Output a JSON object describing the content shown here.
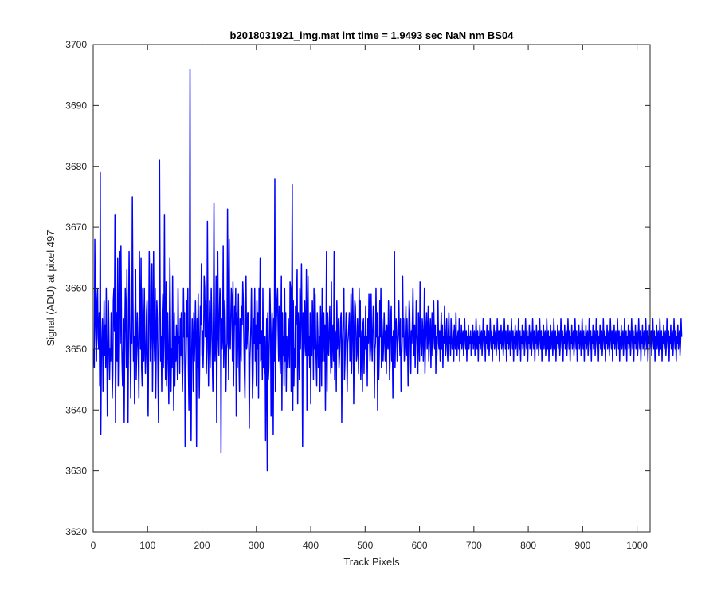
{
  "chart_data": {
    "type": "line",
    "title": "b2018031921_img.mat int time = 1.9493 sec  NaN nm BS04",
    "xlabel": "Track Pixels",
    "ylabel": "Signal (ADU) at pixel 497",
    "xlim": [
      0,
      1024
    ],
    "ylim": [
      3620,
      3700
    ],
    "x_ticks": [
      0,
      100,
      200,
      300,
      400,
      500,
      600,
      700,
      800,
      900,
      1000
    ],
    "y_ticks": [
      3620,
      3630,
      3640,
      3650,
      3660,
      3670,
      3680,
      3690,
      3700
    ],
    "grid": false,
    "legend": "none",
    "series": [
      {
        "color": "#0000ff",
        "x_start": 1,
        "x_step": 1,
        "count": 1024,
        "values": [
          3650,
          3647,
          3668,
          3656,
          3652,
          3648,
          3658,
          3660,
          3652,
          3650,
          3656,
          3644,
          3679,
          3636,
          3648,
          3652,
          3655,
          3643,
          3650,
          3658,
          3649,
          3654,
          3647,
          3660,
          3652,
          3639,
          3648,
          3658,
          3651,
          3645,
          3650,
          3648,
          3656,
          3652,
          3642,
          3646,
          3658,
          3660,
          3653,
          3672,
          3638,
          3650,
          3656,
          3648,
          3665,
          3644,
          3652,
          3666,
          3658,
          3651,
          3667,
          3655,
          3648,
          3644,
          3649,
          3655,
          3638,
          3652,
          3660,
          3656,
          3647,
          3663,
          3645,
          3638,
          3653,
          3666,
          3656,
          3649,
          3642,
          3655,
          3651,
          3675,
          3659,
          3648,
          3652,
          3641,
          3656,
          3663,
          3645,
          3650,
          3656,
          3652,
          3648,
          3642,
          3666,
          3655,
          3650,
          3665,
          3647,
          3644,
          3660,
          3652,
          3648,
          3660,
          3651,
          3646,
          3649,
          3656,
          3658,
          3644,
          3639,
          3652,
          3666,
          3660,
          3648,
          3650,
          3655,
          3664,
          3643,
          3652,
          3666,
          3652,
          3648,
          3660,
          3642,
          3651,
          3658,
          3655,
          3646,
          3638,
          3652,
          3681,
          3660,
          3648,
          3652,
          3643,
          3656,
          3659,
          3647,
          3654,
          3672,
          3651,
          3645,
          3661,
          3644,
          3650,
          3656,
          3648,
          3641,
          3652,
          3665,
          3655,
          3643,
          3650,
          3647,
          3662,
          3651,
          3640,
          3656,
          3644,
          3652,
          3648,
          3654,
          3650,
          3645,
          3660,
          3651,
          3652,
          3646,
          3655,
          3649,
          3656,
          3650,
          3643,
          3648,
          3660,
          3652,
          3656,
          3634,
          3645,
          3650,
          3658,
          3652,
          3660,
          3647,
          3640,
          3655,
          3696,
          3646,
          3635,
          3649,
          3655,
          3651,
          3643,
          3656,
          3648,
          3652,
          3658,
          3650,
          3634,
          3655,
          3647,
          3659,
          3652,
          3642,
          3650,
          3657,
          3654,
          3664,
          3649,
          3653,
          3647,
          3651,
          3662,
          3660,
          3652,
          3658,
          3646,
          3650,
          3671,
          3655,
          3644,
          3653,
          3658,
          3647,
          3652,
          3660,
          3655,
          3648,
          3643,
          3656,
          3674,
          3653,
          3648,
          3652,
          3662,
          3638,
          3653,
          3666,
          3652,
          3649,
          3656,
          3660,
          3657,
          3633,
          3655,
          3650,
          3652,
          3667,
          3647,
          3651,
          3658,
          3653,
          3643,
          3650,
          3651,
          3673,
          3654,
          3645,
          3668,
          3652,
          3650,
          3655,
          3660,
          3658,
          3648,
          3661,
          3644,
          3651,
          3657,
          3654,
          3660,
          3639,
          3656,
          3647,
          3653,
          3659,
          3648,
          3643,
          3655,
          3652,
          3648,
          3657,
          3654,
          3661,
          3658,
          3652,
          3646,
          3642,
          3655,
          3662,
          3650,
          3651,
          3656,
          3656,
          3652,
          3637,
          3648,
          3651,
          3654,
          3660,
          3650,
          3642,
          3646,
          3655,
          3651,
          3660,
          3648,
          3654,
          3644,
          3658,
          3650,
          3656,
          3642,
          3660,
          3651,
          3665,
          3648,
          3649,
          3653,
          3645,
          3660,
          3647,
          3651,
          3646,
          3652,
          3635,
          3648,
          3655,
          3630,
          3656,
          3645,
          3647,
          3652,
          3660,
          3655,
          3639,
          3650,
          3656,
          3651,
          3636,
          3655,
          3648,
          3678,
          3643,
          3650,
          3655,
          3658,
          3660,
          3653,
          3648,
          3657,
          3650,
          3646,
          3652,
          3662,
          3640,
          3656,
          3649,
          3652,
          3644,
          3660,
          3648,
          3656,
          3643,
          3652,
          3647,
          3650,
          3655,
          3649,
          3647,
          3661,
          3660,
          3643,
          3655,
          3677,
          3640,
          3658,
          3644,
          3650,
          3647,
          3657,
          3654,
          3658,
          3663,
          3641,
          3656,
          3652,
          3645,
          3660,
          3650,
          3656,
          3664,
          3652,
          3634,
          3656,
          3648,
          3650,
          3658,
          3652,
          3649,
          3663,
          3640,
          3654,
          3662,
          3649,
          3652,
          3647,
          3656,
          3641,
          3653,
          3649,
          3658,
          3654,
          3645,
          3660,
          3650,
          3659,
          3652,
          3648,
          3644,
          3656,
          3653,
          3647,
          3649,
          3652,
          3643,
          3657,
          3653,
          3644,
          3660,
          3648,
          3652,
          3656,
          3648,
          3654,
          3640,
          3652,
          3666,
          3643,
          3656,
          3650,
          3649,
          3654,
          3657,
          3650,
          3646,
          3661,
          3647,
          3652,
          3654,
          3648,
          3666,
          3645,
          3653,
          3652,
          3643,
          3658,
          3650,
          3652,
          3655,
          3647,
          3649,
          3652,
          3655,
          3656,
          3638,
          3650,
          3653,
          3657,
          3660,
          3645,
          3648,
          3652,
          3656,
          3655,
          3643,
          3651,
          3652,
          3654,
          3656,
          3648,
          3650,
          3659,
          3646,
          3651,
          3660,
          3655,
          3641,
          3652,
          3658,
          3657,
          3653,
          3648,
          3649,
          3655,
          3651,
          3646,
          3660,
          3652,
          3658,
          3645,
          3650,
          3653,
          3643,
          3654,
          3655,
          3646,
          3652,
          3650,
          3657,
          3649,
          3652,
          3644,
          3655,
          3651,
          3659,
          3653,
          3648,
          3650,
          3659,
          3652,
          3648,
          3653,
          3657,
          3655,
          3642,
          3650,
          3651,
          3660,
          3652,
          3656,
          3640,
          3652,
          3645,
          3649,
          3658,
          3652,
          3660,
          3647,
          3655,
          3652,
          3648,
          3651,
          3656,
          3652,
          3648,
          3653,
          3646,
          3654,
          3652,
          3650,
          3658,
          3653,
          3645,
          3649,
          3655,
          3657,
          3648,
          3652,
          3642,
          3653,
          3650,
          3666,
          3647,
          3652,
          3655,
          3653,
          3648,
          3651,
          3653,
          3658,
          3652,
          3649,
          3655,
          3643,
          3648,
          3651,
          3662,
          3652,
          3655,
          3648,
          3650,
          3653,
          3657,
          3649,
          3655,
          3651,
          3644,
          3652,
          3658,
          3656,
          3650,
          3646,
          3653,
          3651,
          3655,
          3660,
          3652,
          3649,
          3654,
          3647,
          3651,
          3658,
          3653,
          3650,
          3646,
          3656,
          3652,
          3648,
          3661,
          3652,
          3650,
          3649,
          3655,
          3653,
          3648,
          3652,
          3660,
          3646,
          3651,
          3654,
          3656,
          3650,
          3652,
          3657,
          3648,
          3651,
          3653,
          3655,
          3647,
          3652,
          3656,
          3649,
          3651,
          3658,
          3653,
          3650,
          3654,
          3646,
          3652,
          3649,
          3655,
          3658,
          3651,
          3650,
          3653,
          3648,
          3652,
          3656,
          3650,
          3654,
          3647,
          3652,
          3651,
          3657,
          3653,
          3649,
          3652,
          3655,
          3650,
          3648,
          3653,
          3656,
          3651,
          3652,
          3649,
          3655,
          3652,
          3650,
          3651,
          3653,
          3648,
          3654,
          3652,
          3650,
          3656,
          3651,
          3649,
          3652,
          3653,
          3650,
          3655,
          3648,
          3652,
          3651,
          3654,
          3650,
          3652,
          3653,
          3649,
          3651,
          3655,
          3652,
          3650,
          3653,
          3648,
          3652,
          3651,
          3654,
          3650,
          3652,
          3651,
          3653,
          3649,
          3652,
          3651,
          3654,
          3650,
          3652,
          3653,
          3649,
          3651,
          3655,
          3652,
          3650,
          3653,
          3648,
          3652,
          3651,
          3654,
          3650,
          3652,
          3653,
          3649,
          3651,
          3655,
          3652,
          3650,
          3653,
          3648,
          3652,
          3651,
          3654,
          3650,
          3652,
          3653,
          3649,
          3651,
          3655,
          3652,
          3650,
          3653,
          3648,
          3652,
          3651,
          3654,
          3650,
          3652,
          3653,
          3649,
          3651,
          3655,
          3652,
          3650,
          3653,
          3648,
          3652,
          3651,
          3654,
          3650,
          3652,
          3653,
          3649,
          3651,
          3655,
          3652,
          3650,
          3653,
          3648,
          3652,
          3651,
          3654,
          3650,
          3652,
          3653,
          3649,
          3651,
          3655,
          3652,
          3650,
          3653,
          3648,
          3652,
          3651,
          3654,
          3650,
          3652,
          3653,
          3649,
          3651,
          3655,
          3652,
          3650,
          3653,
          3648,
          3652,
          3651,
          3654,
          3650,
          3652,
          3653,
          3649,
          3651,
          3655,
          3652,
          3650,
          3653,
          3648,
          3652,
          3651,
          3654,
          3650,
          3652,
          3653,
          3649,
          3651,
          3655,
          3652,
          3650,
          3653,
          3648,
          3652,
          3651,
          3654,
          3650,
          3652,
          3653,
          3649,
          3651,
          3655,
          3652,
          3650,
          3653,
          3648,
          3652,
          3651,
          3654,
          3650,
          3652,
          3653,
          3649,
          3651,
          3655,
          3652,
          3650,
          3653,
          3648,
          3652,
          3651,
          3654,
          3650,
          3652,
          3653,
          3649,
          3651,
          3655,
          3652,
          3650,
          3653,
          3648,
          3652,
          3651,
          3654,
          3650,
          3652,
          3653,
          3649,
          3651,
          3655,
          3652,
          3650,
          3653,
          3648,
          3652,
          3651,
          3654,
          3650,
          3652,
          3653,
          3649,
          3651,
          3655,
          3652,
          3650,
          3653,
          3648,
          3652,
          3651,
          3654,
          3650,
          3652,
          3653,
          3649,
          3651,
          3655,
          3652,
          3650,
          3653,
          3648,
          3652,
          3651,
          3654,
          3650,
          3652,
          3653,
          3649,
          3651,
          3655,
          3652,
          3650,
          3653,
          3648,
          3652,
          3651,
          3654,
          3650,
          3652,
          3653,
          3649,
          3651,
          3655,
          3652,
          3650,
          3653,
          3648,
          3652,
          3651,
          3654,
          3650,
          3652,
          3653,
          3649,
          3651,
          3655,
          3652,
          3650,
          3653,
          3648,
          3652,
          3651,
          3654,
          3650,
          3652,
          3653,
          3649,
          3651,
          3655,
          3652,
          3650,
          3653,
          3648,
          3652,
          3651,
          3654,
          3650,
          3652,
          3653,
          3649,
          3651,
          3655,
          3652,
          3650,
          3653,
          3648,
          3652,
          3651,
          3654,
          3650,
          3652,
          3653,
          3649,
          3651,
          3655,
          3652,
          3650,
          3653,
          3648,
          3652,
          3651,
          3654,
          3650,
          3652,
          3653,
          3649,
          3651,
          3655,
          3652,
          3650,
          3653,
          3648,
          3652,
          3651,
          3654,
          3650,
          3652,
          3653,
          3649,
          3651,
          3655,
          3652,
          3650,
          3653,
          3648,
          3652,
          3651,
          3654,
          3650,
          3652,
          3653,
          3649,
          3651,
          3655,
          3652,
          3650,
          3653,
          3648,
          3652,
          3651,
          3654,
          3650,
          3652,
          3653,
          3649,
          3651,
          3655,
          3652,
          3650,
          3653,
          3648,
          3652,
          3651,
          3654,
          3650,
          3652,
          3653,
          3649,
          3651,
          3655,
          3652,
          3650,
          3653,
          3648,
          3652,
          3651,
          3654,
          3650,
          3652,
          3653,
          3649,
          3651,
          3655,
          3652,
          3650,
          3653,
          3648,
          3652,
          3651,
          3654,
          3650,
          3652,
          3653,
          3649,
          3651,
          3655,
          3652,
          3650,
          3653,
          3648,
          3652,
          3651,
          3654,
          3650,
          3652,
          3653,
          3649,
          3651,
          3655,
          3652,
          3650,
          3653,
          3648,
          3652,
          3651,
          3654,
          3650,
          3652,
          3653,
          3649,
          3651,
          3655,
          3652
        ]
      }
    ]
  }
}
